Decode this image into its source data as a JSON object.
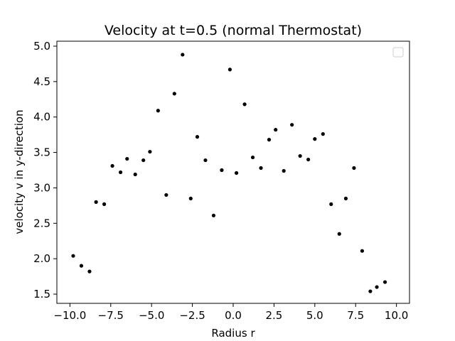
{
  "chart_data": {
    "type": "scatter",
    "title": "Velocity at t=0.5 (normal Thermostat)",
    "xlabel": "Radius r",
    "ylabel": "velocity v in y-direction",
    "xlim": [
      -10.8,
      10.8
    ],
    "ylim": [
      1.37,
      5.07
    ],
    "xticks": [
      -10.0,
      -7.5,
      -5.0,
      -2.5,
      0.0,
      2.5,
      5.0,
      7.5,
      10.0
    ],
    "xtick_labels": [
      "−10.0",
      "−7.5",
      "−5.0",
      "−2.5",
      "0.0",
      "2.5",
      "5.0",
      "7.5",
      "10.0"
    ],
    "yticks": [
      1.5,
      2.0,
      2.5,
      3.0,
      3.5,
      4.0,
      4.5,
      5.0
    ],
    "ytick_labels": [
      "1.5",
      "2.0",
      "2.5",
      "3.0",
      "3.5",
      "4.0",
      "4.5",
      "5.0"
    ],
    "grid": false,
    "legend": {
      "position": "top-right",
      "entries": []
    },
    "marker_color": "#000000",
    "series": [
      {
        "x": [
          -9.8,
          -9.3,
          -8.8,
          -8.4,
          -7.9,
          -7.4,
          -6.9,
          -6.5,
          -6.0,
          -5.5,
          -5.1,
          -4.6,
          -4.1,
          -3.6,
          -3.1,
          -2.6,
          -2.2,
          -1.7,
          -1.2,
          -0.7,
          -0.2,
          0.2,
          0.7,
          1.2,
          1.7,
          2.2,
          2.6,
          3.1,
          3.6,
          4.1,
          4.6,
          5.0,
          5.5,
          6.0,
          6.5,
          6.9,
          7.4,
          7.9,
          8.4,
          8.8,
          9.3
        ],
        "y": [
          2.04,
          1.9,
          1.82,
          2.8,
          2.77,
          3.31,
          3.22,
          3.41,
          3.19,
          3.39,
          3.51,
          4.09,
          2.9,
          4.33,
          4.88,
          2.85,
          3.72,
          3.39,
          2.61,
          3.25,
          4.67,
          3.21,
          4.18,
          3.43,
          3.28,
          3.68,
          3.82,
          3.24,
          3.89,
          3.45,
          3.4,
          3.69,
          3.76,
          2.77,
          2.35,
          2.85,
          3.28,
          2.11,
          1.54,
          1.6,
          1.67
        ]
      }
    ]
  }
}
